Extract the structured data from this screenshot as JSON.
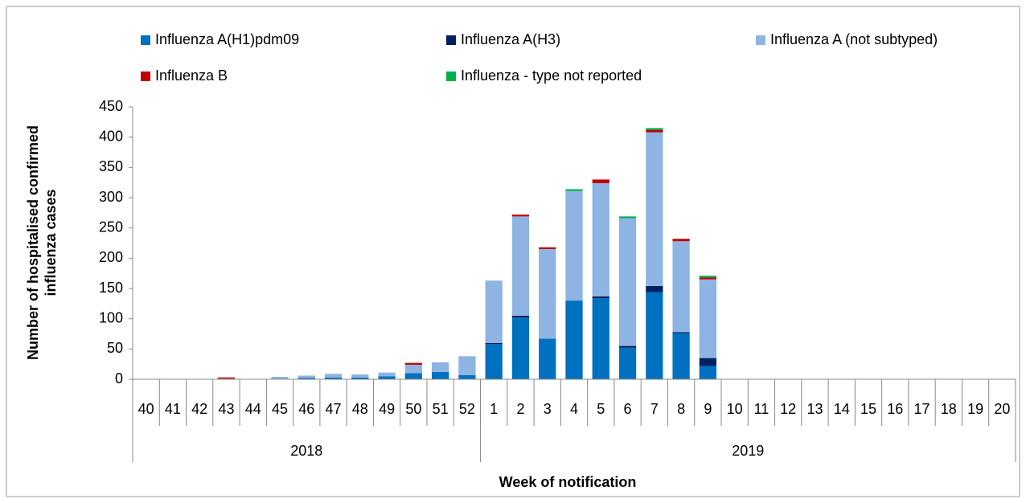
{
  "chart_data": {
    "type": "stacked-bar",
    "ylabel": [
      "Number of hospitalised confirmed",
      "influenza cases"
    ],
    "xlabel": "Week of notification",
    "categories": [
      "40",
      "41",
      "42",
      "43",
      "44",
      "45",
      "46",
      "47",
      "48",
      "49",
      "50",
      "51",
      "52",
      "1",
      "2",
      "3",
      "4",
      "5",
      "6",
      "7",
      "8",
      "9",
      "10",
      "11",
      "12",
      "13",
      "14",
      "15",
      "16",
      "17",
      "18",
      "19",
      "20"
    ],
    "years": [
      "2018",
      "2019"
    ],
    "series": [
      {
        "name": "Influenza A(H1)pdm09",
        "color": "#0070c0",
        "values": [
          0,
          0,
          0,
          0,
          0,
          1,
          2,
          3,
          3,
          5,
          10,
          12,
          7,
          58,
          102,
          67,
          130,
          134,
          52,
          144,
          76,
          22,
          0,
          0,
          0,
          0,
          0,
          0,
          0,
          0,
          0,
          0,
          0
        ]
      },
      {
        "name": "Influenza A(H3)",
        "color": "#002060",
        "values": [
          0,
          0,
          0,
          0,
          0,
          0,
          0,
          0,
          0,
          0,
          0,
          0,
          0,
          2,
          3,
          0,
          0,
          3,
          3,
          10,
          2,
          13,
          0,
          0,
          0,
          0,
          0,
          0,
          0,
          0,
          0,
          0,
          0
        ]
      },
      {
        "name": "Influenza A (not subtyped)",
        "color": "#8db4e2",
        "values": [
          0,
          0,
          0,
          1,
          0,
          3,
          4,
          6,
          5,
          6,
          14,
          16,
          31,
          103,
          164,
          148,
          181,
          187,
          211,
          254,
          150,
          130,
          0,
          0,
          0,
          0,
          0,
          0,
          0,
          0,
          0,
          0,
          0
        ]
      },
      {
        "name": "Influenza B",
        "color": "#c00000",
        "values": [
          0,
          0,
          0,
          2,
          0,
          0,
          0,
          0,
          0,
          0,
          3,
          0,
          0,
          0,
          3,
          3,
          0,
          6,
          0,
          4,
          4,
          3,
          0,
          0,
          0,
          0,
          0,
          0,
          0,
          0,
          0,
          0,
          0
        ]
      },
      {
        "name": "Influenza - type not reported",
        "color": "#00b050",
        "values": [
          0,
          0,
          0,
          0,
          0,
          0,
          0,
          0,
          0,
          0,
          0,
          0,
          0,
          0,
          0,
          0,
          3,
          0,
          3,
          3,
          0,
          3,
          0,
          0,
          0,
          0,
          0,
          0,
          0,
          0,
          0,
          0,
          0
        ]
      }
    ],
    "ylim": [
      0,
      450
    ],
    "yticks": [
      0,
      50,
      100,
      150,
      200,
      250,
      300,
      350,
      400,
      450
    ]
  }
}
